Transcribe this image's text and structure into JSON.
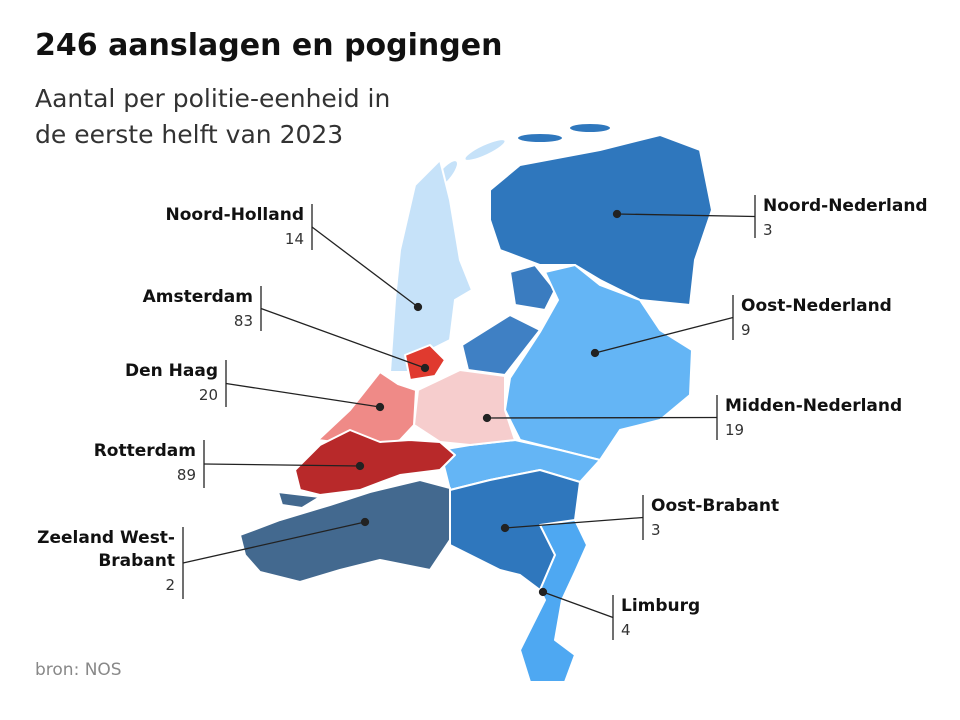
{
  "header": {
    "title": "246 aanslagen en pogingen",
    "subtitle": [
      "Aantal per politie-eenheid in",
      "de eerste helft van 2023"
    ]
  },
  "regions": [
    {
      "name": "Noord-Nederland",
      "value": 3
    },
    {
      "name": "Oost-Nederland",
      "value": 9
    },
    {
      "name": "Midden-Nederland",
      "value": 19
    },
    {
      "name": "Oost-Brabant",
      "value": 3
    },
    {
      "name": "Limburg",
      "value": 4
    },
    {
      "name": "Noord-Holland",
      "value": 14
    },
    {
      "name": "Amsterdam",
      "value": 83
    },
    {
      "name": "Den Haag",
      "value": 20
    },
    {
      "name": "Rotterdam",
      "value": 89
    },
    {
      "name": "Zeeland West-Brabant",
      "value": 2
    }
  ],
  "source": "bron: NOS"
}
